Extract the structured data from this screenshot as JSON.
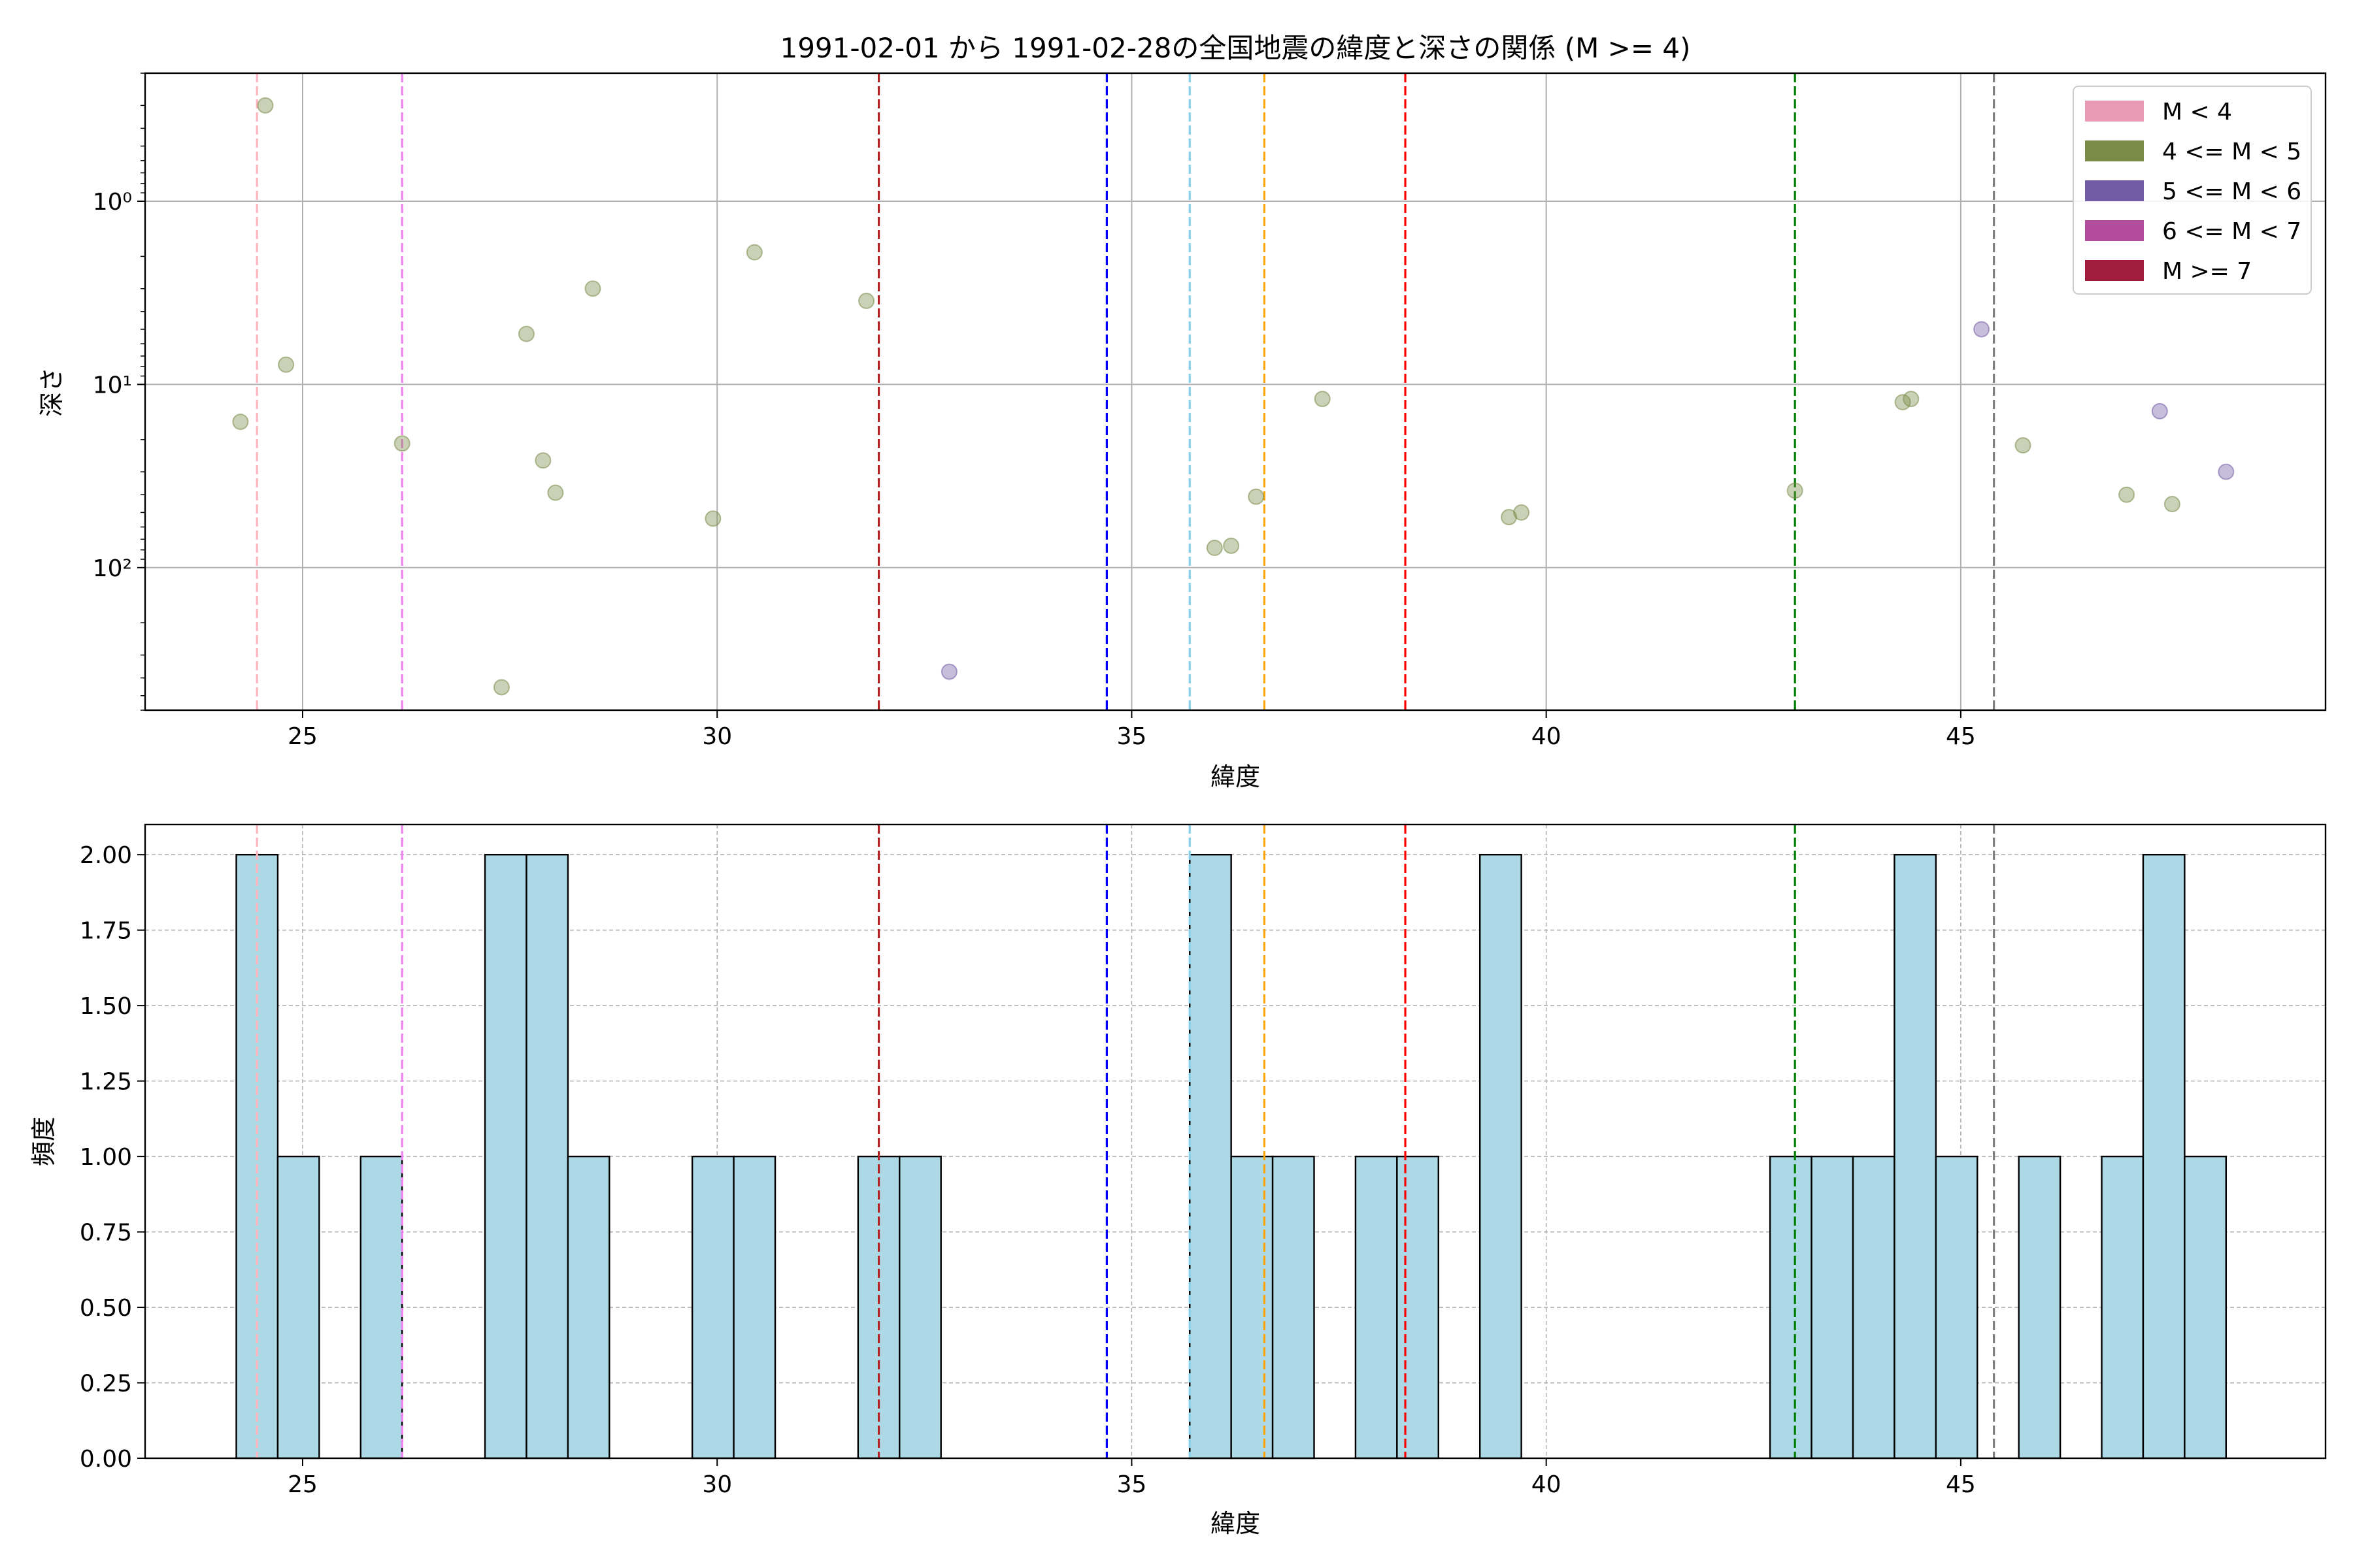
{
  "chart_data": [
    {
      "type": "scatter",
      "title": "1991-02-01 から 1991-02-28の全国地震の緯度と深さの関係 (M >= 4)",
      "xlabel": "緯度",
      "ylabel": "深さ",
      "xlim": [
        23.1,
        49.4
      ],
      "ylim": [
        0.2,
        600
      ],
      "y_scale": "log",
      "y_inverted": true,
      "grid": true,
      "x_ticks": [
        25,
        30,
        35,
        40,
        45
      ],
      "x_tick_labels": [
        "25",
        "30",
        "35",
        "40",
        "45"
      ],
      "y_ticks": [
        1,
        10,
        100
      ],
      "y_tick_labels": [
        "10⁰",
        "10¹",
        "10²"
      ],
      "legend": {
        "position": "top-right",
        "entries": [
          {
            "label": "M < 4",
            "color": "#e899b3"
          },
          {
            "label": "4 <= M < 5",
            "color": "#7a8b48"
          },
          {
            "label": "5 <= M < 6",
            "color": "#735ca6"
          },
          {
            "label": "6 <= M < 7",
            "color": "#b44c9c"
          },
          {
            "label": "M >= 7",
            "color": "#a11d3d"
          }
        ]
      },
      "vlines": [
        {
          "x": 24.45,
          "color": "#ffb6c1"
        },
        {
          "x": 26.2,
          "color": "#ee82ee"
        },
        {
          "x": 31.95,
          "color": "#b22222"
        },
        {
          "x": 34.7,
          "color": "#0000ff"
        },
        {
          "x": 35.7,
          "color": "#87ceeb"
        },
        {
          "x": 36.6,
          "color": "#ffa500"
        },
        {
          "x": 38.3,
          "color": "#ff0000"
        },
        {
          "x": 43.0,
          "color": "#008000"
        },
        {
          "x": 45.4,
          "color": "#808080"
        }
      ],
      "series": [
        {
          "color": "#7a8b48",
          "points": [
            {
              "x": 24.25,
              "y": 16
            },
            {
              "x": 24.55,
              "y": 0.3
            },
            {
              "x": 24.8,
              "y": 7.8
            },
            {
              "x": 26.2,
              "y": 21
            },
            {
              "x": 27.4,
              "y": 450
            },
            {
              "x": 27.7,
              "y": 5.3
            },
            {
              "x": 27.9,
              "y": 26
            },
            {
              "x": 28.05,
              "y": 39
            },
            {
              "x": 28.5,
              "y": 3
            },
            {
              "x": 29.95,
              "y": 54
            },
            {
              "x": 30.45,
              "y": 1.9
            },
            {
              "x": 31.8,
              "y": 3.5
            },
            {
              "x": 36.0,
              "y": 78
            },
            {
              "x": 36.2,
              "y": 76
            },
            {
              "x": 36.5,
              "y": 41
            },
            {
              "x": 37.3,
              "y": 12
            },
            {
              "x": 39.55,
              "y": 53
            },
            {
              "x": 39.7,
              "y": 50
            },
            {
              "x": 43.0,
              "y": 38
            },
            {
              "x": 44.3,
              "y": 12.5
            },
            {
              "x": 44.4,
              "y": 12
            },
            {
              "x": 45.75,
              "y": 21.5
            },
            {
              "x": 47.0,
              "y": 40
            },
            {
              "x": 47.55,
              "y": 45
            }
          ]
        },
        {
          "color": "#735ca6",
          "points": [
            {
              "x": 32.8,
              "y": 370
            },
            {
              "x": 45.25,
              "y": 5
            },
            {
              "x": 47.4,
              "y": 14
            },
            {
              "x": 48.2,
              "y": 30
            }
          ]
        }
      ]
    },
    {
      "type": "bar",
      "title": "",
      "xlabel": "緯度",
      "ylabel": "頻度",
      "xlim": [
        23.1,
        49.4
      ],
      "ylim": [
        0,
        2.1
      ],
      "grid": true,
      "x_ticks": [
        25,
        30,
        35,
        40,
        45
      ],
      "x_tick_labels": [
        "25",
        "30",
        "35",
        "40",
        "45"
      ],
      "y_ticks": [
        0,
        0.25,
        0.5,
        0.75,
        1.0,
        1.25,
        1.5,
        1.75,
        2.0
      ],
      "y_tick_labels": [
        "0.00",
        "0.25",
        "0.50",
        "0.75",
        "1.00",
        "1.25",
        "1.50",
        "1.75",
        "2.00"
      ],
      "bar_color": "#add8e6",
      "bar_edge": "#000000",
      "vlines": [
        {
          "x": 24.45,
          "color": "#ffb6c1"
        },
        {
          "x": 26.2,
          "color": "#ee82ee"
        },
        {
          "x": 31.95,
          "color": "#b22222"
        },
        {
          "x": 34.7,
          "color": "#0000ff"
        },
        {
          "x": 35.7,
          "color": "#87ceeb"
        },
        {
          "x": 36.6,
          "color": "#ffa500"
        },
        {
          "x": 38.3,
          "color": "#ff0000"
        },
        {
          "x": 43.0,
          "color": "#008000"
        },
        {
          "x": 45.4,
          "color": "#808080"
        }
      ],
      "bins": [
        {
          "x0": 24.2,
          "x1": 24.7,
          "count": 2
        },
        {
          "x0": 24.7,
          "x1": 25.2,
          "count": 1
        },
        {
          "x0": 25.7,
          "x1": 26.2,
          "count": 1
        },
        {
          "x0": 27.2,
          "x1": 27.7,
          "count": 2
        },
        {
          "x0": 27.7,
          "x1": 28.2,
          "count": 2
        },
        {
          "x0": 28.2,
          "x1": 28.7,
          "count": 1
        },
        {
          "x0": 29.7,
          "x1": 30.2,
          "count": 1
        },
        {
          "x0": 30.2,
          "x1": 30.7,
          "count": 1
        },
        {
          "x0": 31.7,
          "x1": 32.2,
          "count": 1
        },
        {
          "x0": 32.2,
          "x1": 32.7,
          "count": 1
        },
        {
          "x0": 35.7,
          "x1": 36.2,
          "count": 2
        },
        {
          "x0": 36.2,
          "x1": 36.7,
          "count": 1
        },
        {
          "x0": 36.7,
          "x1": 37.2,
          "count": 1
        },
        {
          "x0": 37.7,
          "x1": 38.2,
          "count": 1
        },
        {
          "x0": 38.2,
          "x1": 38.7,
          "count": 1
        },
        {
          "x0": 39.2,
          "x1": 39.7,
          "count": 2
        },
        {
          "x0": 42.7,
          "x1": 43.2,
          "count": 1
        },
        {
          "x0": 43.2,
          "x1": 43.7,
          "count": 1
        },
        {
          "x0": 43.7,
          "x1": 44.2,
          "count": 1
        },
        {
          "x0": 44.2,
          "x1": 44.7,
          "count": 2
        },
        {
          "x0": 44.7,
          "x1": 45.2,
          "count": 1
        },
        {
          "x0": 45.7,
          "x1": 46.2,
          "count": 1
        },
        {
          "x0": 46.7,
          "x1": 47.2,
          "count": 1
        },
        {
          "x0": 47.2,
          "x1": 47.7,
          "count": 2
        },
        {
          "x0": 47.7,
          "x1": 48.2,
          "count": 1
        }
      ]
    }
  ]
}
